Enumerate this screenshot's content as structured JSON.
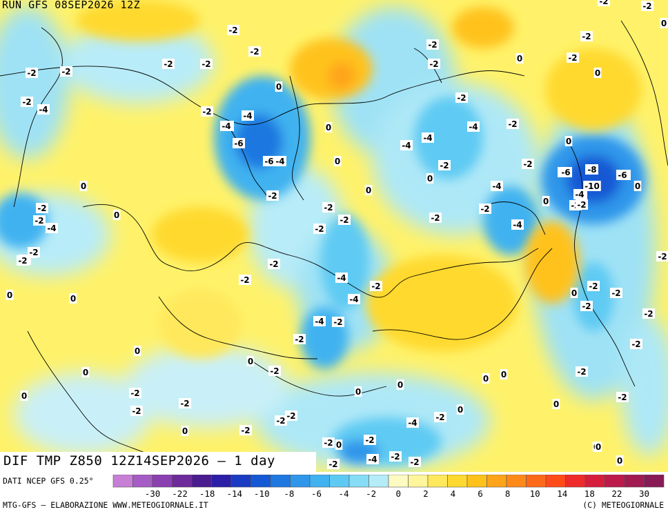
{
  "header": {
    "run_text": "RUN GFS 08SEP2026 12Z"
  },
  "title": {
    "main": "DIF TMP Z850 12Z14SEP2026 – 1 day"
  },
  "footer": {
    "source": "DATI NCEP GFS 0.25°",
    "left": "MTG-GFS – ELABORAZIONE WWW.METEOGIORNALE.IT",
    "right": "(C) METEOGIORNALE"
  },
  "legend": {
    "colors": [
      "#c77fd6",
      "#a55cc4",
      "#8a3fb0",
      "#6e2a9a",
      "#4a1c8f",
      "#2a1fa6",
      "#1a3cc2",
      "#1458d4",
      "#1f78e0",
      "#2f96ea",
      "#40b2f0",
      "#5ecaf3",
      "#86dcf5",
      "#b4ecf8",
      "#fdfbc2",
      "#fff59a",
      "#ffe85c",
      "#ffd92f",
      "#ffc21a",
      "#ffa41a",
      "#ff8a1a",
      "#ff6a1a",
      "#ff4a1a",
      "#ee2a2a",
      "#d61e3c",
      "#bc1a4a",
      "#a11a52",
      "#881a55"
    ],
    "labels": [
      "-30",
      "-22",
      "-18",
      "-14",
      "-10",
      "-8",
      "-6",
      "-4",
      "-2",
      "0",
      "2",
      "4",
      "6",
      "8",
      "10",
      "14",
      "18",
      "22",
      "30"
    ]
  },
  "contour_labels": [
    {
      "t": "-2"
    },
    {
      "t": "-2"
    },
    {
      "t": "-2"
    },
    {
      "t": "-2"
    },
    {
      "t": "-2"
    },
    {
      "t": "-2"
    },
    {
      "t": "-4"
    },
    {
      "t": "-2"
    },
    {
      "t": "-4"
    },
    {
      "t": "0"
    },
    {
      "t": "-2"
    },
    {
      "t": "-4"
    },
    {
      "t": "-4"
    },
    {
      "t": "-6"
    },
    {
      "t": "-6"
    },
    {
      "t": "-4"
    },
    {
      "t": "0"
    },
    {
      "t": "-2"
    },
    {
      "t": "-4"
    },
    {
      "t": "-2"
    },
    {
      "t": "0"
    },
    {
      "t": "0"
    },
    {
      "t": "0"
    },
    {
      "t": "-2"
    },
    {
      "t": "-6"
    },
    {
      "t": "-4"
    },
    {
      "t": "-2"
    },
    {
      "t": "-2"
    },
    {
      "t": "-2"
    },
    {
      "t": "-2"
    },
    {
      "t": "-2"
    },
    {
      "t": "-4"
    },
    {
      "t": "-2"
    },
    {
      "t": "-4"
    },
    {
      "t": "-4"
    },
    {
      "t": "-2"
    },
    {
      "t": "-2"
    },
    {
      "t": "0"
    },
    {
      "t": "0"
    },
    {
      "t": "-2"
    },
    {
      "t": "-2"
    },
    {
      "t": "-4"
    },
    {
      "t": "-2"
    },
    {
      "t": "-4"
    },
    {
      "t": "0"
    },
    {
      "t": "-2"
    },
    {
      "t": "-2"
    },
    {
      "t": "-2"
    },
    {
      "t": "0"
    },
    {
      "t": "0"
    },
    {
      "t": "-2"
    },
    {
      "t": "-2"
    },
    {
      "t": "0"
    },
    {
      "t": "0"
    },
    {
      "t": "0"
    },
    {
      "t": "0"
    },
    {
      "t": "-2"
    },
    {
      "t": "0"
    },
    {
      "t": "-4"
    },
    {
      "t": "-2"
    },
    {
      "t": "-4"
    },
    {
      "t": "-2"
    },
    {
      "t": "-2"
    },
    {
      "t": "-4"
    },
    {
      "t": "-2"
    },
    {
      "t": "-2"
    },
    {
      "t": "0"
    },
    {
      "t": "-2"
    },
    {
      "t": "0"
    },
    {
      "t": "-2"
    },
    {
      "t": "0"
    },
    {
      "t": "-2"
    },
    {
      "t": "-2"
    },
    {
      "t": "-2"
    },
    {
      "t": "-2"
    },
    {
      "t": "-2"
    },
    {
      "t": "0"
    },
    {
      "t": "0"
    },
    {
      "t": "-2"
    },
    {
      "t": "0"
    },
    {
      "t": "-6"
    },
    {
      "t": "-8"
    },
    {
      "t": "-6"
    },
    {
      "t": "-10"
    },
    {
      "t": "-4"
    },
    {
      "t": "-2"
    },
    {
      "t": "0"
    },
    {
      "t": "-2"
    },
    {
      "t": "-2"
    },
    {
      "t": "0"
    },
    {
      "t": "-2"
    },
    {
      "t": "-4"
    },
    {
      "t": "-2"
    },
    {
      "t": "-2"
    },
    {
      "t": "-2"
    },
    {
      "t": "-2"
    },
    {
      "t": "-2"
    },
    {
      "t": "0"
    },
    {
      "t": "0"
    },
    {
      "t": "0"
    },
    {
      "t": "-2"
    },
    {
      "t": "0"
    },
    {
      "t": "-2"
    },
    {
      "t": "0"
    },
    {
      "t": "-2"
    },
    {
      "t": "0"
    },
    {
      "t": "-4"
    },
    {
      "t": "-2"
    },
    {
      "t": "0"
    },
    {
      "t": "-2"
    },
    {
      "t": "-4"
    },
    {
      "t": "-2"
    },
    {
      "t": "0"
    },
    {
      "t": "-2"
    },
    {
      "t": "0"
    },
    {
      "t": "0"
    },
    {
      "t": "-2"
    },
    {
      "t": "-2"
    }
  ]
}
